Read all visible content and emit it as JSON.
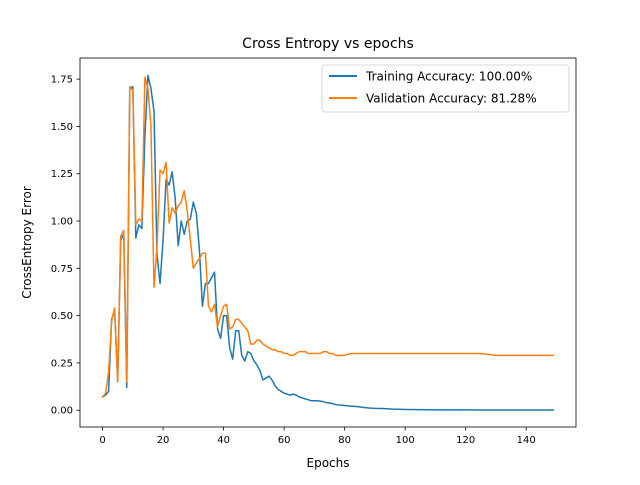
{
  "chart_data": {
    "type": "line",
    "title": "Cross Entropy vs epochs",
    "xlabel": "Epochs",
    "ylabel": "CrossEntropy Error",
    "xlim": [
      -7.45,
      156.45
    ],
    "ylim": [
      -0.0886,
      1.8616
    ],
    "xticks": [
      0,
      20,
      40,
      60,
      80,
      100,
      120,
      140
    ],
    "xtick_labels": [
      "0",
      "20",
      "40",
      "60",
      "80",
      "100",
      "120",
      "140"
    ],
    "yticks": [
      0,
      0.25,
      0.5,
      0.75,
      1.0,
      1.25,
      1.5,
      1.75
    ],
    "ytick_labels": [
      "0.00",
      "0.25",
      "0.50",
      "0.75",
      "1.00",
      "1.25",
      "1.50",
      "1.75"
    ],
    "grid": false,
    "legend_position": "upper-right",
    "series": [
      {
        "name": "Training Accuracy: 100.00%",
        "color": "#1f77b4",
        "x": [
          0,
          1,
          2,
          3,
          4,
          5,
          6,
          7,
          8,
          9,
          10,
          11,
          12,
          13,
          14,
          15,
          16,
          17,
          18,
          19,
          20,
          21,
          22,
          23,
          24,
          25,
          26,
          27,
          28,
          29,
          30,
          31,
          32,
          33,
          34,
          35,
          36,
          37,
          38,
          39,
          40,
          41,
          42,
          43,
          44,
          45,
          46,
          47,
          48,
          49,
          50,
          51,
          52,
          53,
          54,
          55,
          56,
          57,
          58,
          59,
          60,
          61,
          62,
          63,
          64,
          65,
          66,
          67,
          68,
          69,
          70,
          71,
          72,
          73,
          74,
          75,
          76,
          77,
          78,
          79,
          80,
          82,
          84,
          86,
          88,
          90,
          92,
          94,
          96,
          98,
          100,
          105,
          110,
          115,
          120,
          125,
          130,
          135,
          140,
          145,
          149
        ],
        "y": [
          0.07,
          0.08,
          0.1,
          0.48,
          0.53,
          0.15,
          0.9,
          0.93,
          0.12,
          1.7,
          1.71,
          0.91,
          0.98,
          0.96,
          1.45,
          1.77,
          1.7,
          1.58,
          0.82,
          0.67,
          0.9,
          1.22,
          1.19,
          1.26,
          1.12,
          0.87,
          1.0,
          0.93,
          1.0,
          1.01,
          1.1,
          1.04,
          0.85,
          0.55,
          0.67,
          0.67,
          0.7,
          0.73,
          0.43,
          0.38,
          0.5,
          0.5,
          0.33,
          0.27,
          0.42,
          0.42,
          0.29,
          0.26,
          0.31,
          0.3,
          0.26,
          0.24,
          0.21,
          0.16,
          0.17,
          0.18,
          0.16,
          0.13,
          0.11,
          0.1,
          0.09,
          0.085,
          0.08,
          0.085,
          0.08,
          0.07,
          0.065,
          0.06,
          0.055,
          0.05,
          0.05,
          0.05,
          0.048,
          0.045,
          0.04,
          0.038,
          0.035,
          0.03,
          0.028,
          0.027,
          0.025,
          0.022,
          0.02,
          0.015,
          0.012,
          0.01,
          0.009,
          0.008,
          0.006,
          0.005,
          0.004,
          0.003,
          0.002,
          0.002,
          0.002,
          0.001,
          0.001,
          0.001,
          0.001,
          0.001,
          0.001
        ]
      },
      {
        "name": "Validation Accuracy: 81.28%",
        "color": "#ff7f0e",
        "x": [
          0,
          1,
          2,
          3,
          4,
          5,
          6,
          7,
          8,
          9,
          10,
          11,
          12,
          13,
          14,
          15,
          16,
          17,
          18,
          19,
          20,
          21,
          22,
          23,
          24,
          25,
          26,
          27,
          28,
          29,
          30,
          31,
          32,
          33,
          34,
          35,
          36,
          37,
          38,
          39,
          40,
          41,
          42,
          43,
          44,
          45,
          46,
          47,
          48,
          49,
          50,
          51,
          52,
          53,
          54,
          55,
          56,
          57,
          58,
          59,
          60,
          61,
          62,
          63,
          64,
          65,
          66,
          67,
          68,
          69,
          70,
          71,
          72,
          73,
          74,
          75,
          76,
          77,
          78,
          79,
          80,
          82,
          84,
          86,
          88,
          90,
          92,
          94,
          96,
          98,
          100,
          105,
          110,
          115,
          120,
          125,
          130,
          135,
          140,
          145,
          149
        ],
        "y": [
          0.07,
          0.09,
          0.2,
          0.47,
          0.54,
          0.15,
          0.92,
          0.95,
          0.15,
          1.71,
          1.69,
          0.98,
          1.01,
          1.0,
          1.76,
          1.7,
          1.5,
          0.65,
          0.86,
          1.27,
          1.25,
          1.31,
          0.99,
          1.07,
          1.04,
          1.08,
          1.1,
          1.16,
          1.05,
          0.9,
          0.75,
          0.78,
          0.8,
          0.83,
          0.83,
          0.55,
          0.52,
          0.56,
          0.44,
          0.5,
          0.55,
          0.56,
          0.43,
          0.44,
          0.48,
          0.48,
          0.46,
          0.44,
          0.42,
          0.35,
          0.35,
          0.37,
          0.37,
          0.35,
          0.34,
          0.33,
          0.32,
          0.32,
          0.31,
          0.31,
          0.3,
          0.3,
          0.29,
          0.29,
          0.3,
          0.31,
          0.31,
          0.31,
          0.3,
          0.3,
          0.3,
          0.3,
          0.3,
          0.31,
          0.31,
          0.3,
          0.3,
          0.29,
          0.29,
          0.29,
          0.29,
          0.3,
          0.3,
          0.3,
          0.3,
          0.3,
          0.3,
          0.3,
          0.3,
          0.3,
          0.3,
          0.3,
          0.3,
          0.3,
          0.3,
          0.3,
          0.29,
          0.29,
          0.29,
          0.29,
          0.29
        ]
      }
    ]
  }
}
